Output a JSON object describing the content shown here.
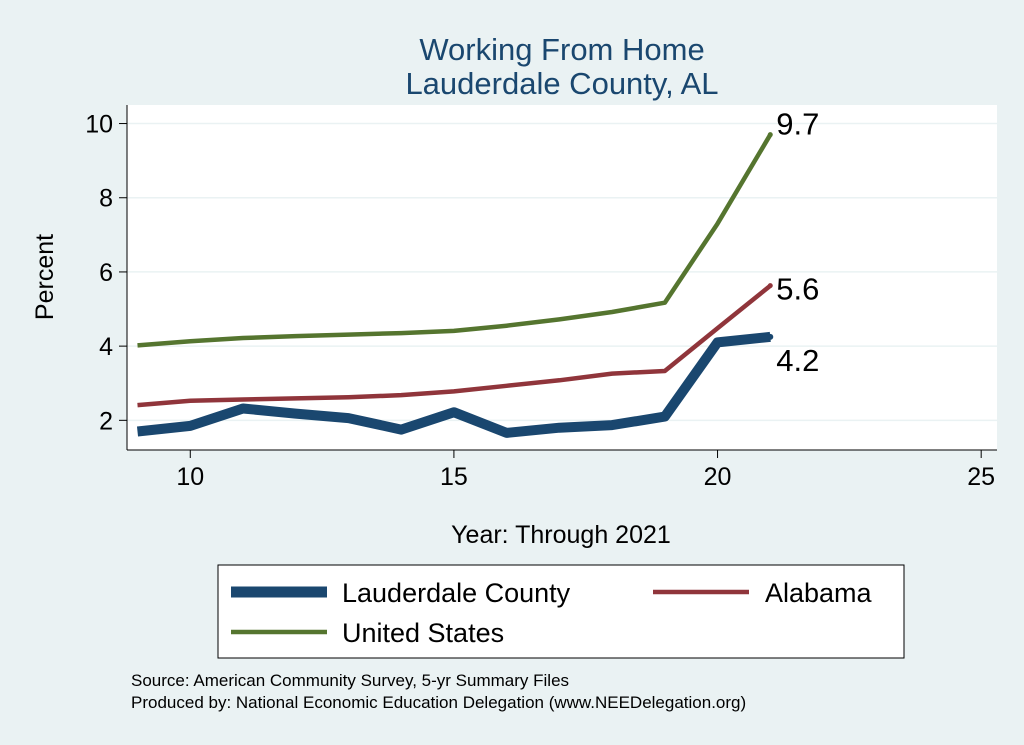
{
  "chart_data": {
    "type": "line",
    "title": [
      "Working From Home",
      "Lauderdale County, AL"
    ],
    "xlabel": "Year: Through 2021",
    "ylabel": "Percent",
    "xlim": [
      8.8,
      25.3
    ],
    "ylim": [
      1.2,
      10.5
    ],
    "xticks": [
      10,
      15,
      20,
      25
    ],
    "yticks": [
      2,
      4,
      6,
      8,
      10
    ],
    "grid": true,
    "series": [
      {
        "name": "Lauderdale County",
        "color": "#1a476f",
        "x": [
          9,
          10,
          11,
          12,
          13,
          14,
          15,
          16,
          17,
          18,
          19,
          20,
          21
        ],
        "values": [
          1.7,
          1.85,
          2.32,
          2.18,
          2.06,
          1.75,
          2.22,
          1.66,
          1.8,
          1.87,
          2.1,
          4.1,
          4.25
        ]
      },
      {
        "name": "Alabama",
        "color": "#90353b",
        "x": [
          9,
          10,
          11,
          12,
          13,
          14,
          15,
          16,
          17,
          18,
          19,
          20,
          21
        ],
        "values": [
          2.41,
          2.53,
          2.56,
          2.59,
          2.62,
          2.68,
          2.78,
          2.93,
          3.08,
          3.26,
          3.33,
          4.48,
          5.63
        ]
      },
      {
        "name": "United States",
        "color": "#55752f",
        "x": [
          9,
          10,
          11,
          12,
          13,
          14,
          15,
          16,
          17,
          18,
          19,
          20,
          21
        ],
        "values": [
          4.02,
          4.13,
          4.22,
          4.27,
          4.31,
          4.35,
          4.41,
          4.55,
          4.72,
          4.92,
          5.17,
          7.3,
          9.7
        ]
      }
    ],
    "end_labels": [
      "9.7",
      "5.6",
      "4.2"
    ],
    "legend_position": "bottom"
  },
  "footnotes": [
    "Source: American Community Survey, 5-yr Summary Files",
    "Produced by: National Economic Education Delegation (www.NEEDelegation.org)"
  ]
}
